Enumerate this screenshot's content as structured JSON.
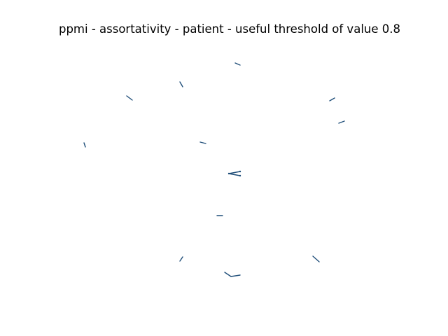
{
  "title": "ppmi - assortativity - patient - useful threshold of value 0.8",
  "graph": {
    "type": "network",
    "edge_color": "#1f4e79",
    "node_count": 28,
    "edge_count": 14,
    "node_labels_shown": false,
    "axes_shown": false
  }
}
